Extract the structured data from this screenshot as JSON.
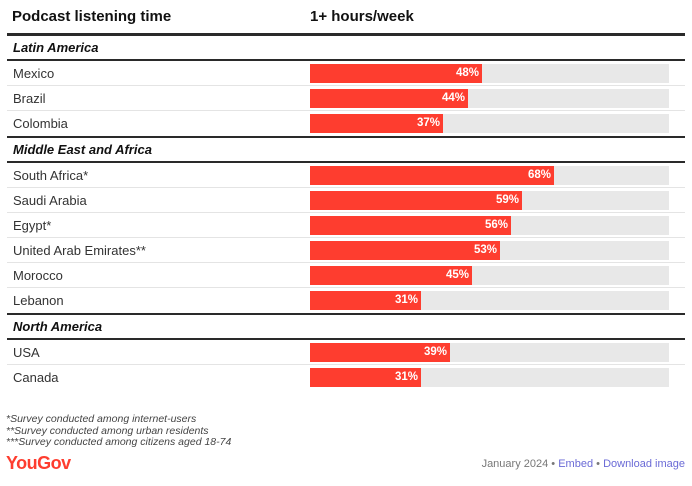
{
  "header": {
    "left_title": "Podcast listening time",
    "right_title": "1+ hours/week"
  },
  "chart_data": {
    "type": "bar",
    "orientation": "horizontal",
    "series": [
      {
        "values": [
          48,
          44,
          37,
          68,
          59,
          56,
          53,
          45,
          31,
          39,
          31
        ]
      }
    ],
    "categories": [
      "Mexico",
      "Brazil",
      "Colombia",
      "South Africa*",
      "Saudi Arabia",
      "Egypt*",
      "United Arab Emirates**",
      "Morocco",
      "Lebanon",
      "USA",
      "Canada"
    ],
    "xlim": [
      0,
      100
    ],
    "bar_color": "#fe3d2f",
    "track_color": "#e8e8e8",
    "groups": [
      {
        "label": "Latin America",
        "rows": [
          {
            "label": "Mexico",
            "value": 48,
            "display": "48%"
          },
          {
            "label": "Brazil",
            "value": 44,
            "display": "44%"
          },
          {
            "label": "Colombia",
            "value": 37,
            "display": "37%"
          }
        ]
      },
      {
        "label": "Middle East and Africa",
        "rows": [
          {
            "label": "South Africa*",
            "value": 68,
            "display": "68%"
          },
          {
            "label": "Saudi Arabia",
            "value": 59,
            "display": "59%"
          },
          {
            "label": "Egypt*",
            "value": 56,
            "display": "56%"
          },
          {
            "label": "United Arab Emirates**",
            "value": 53,
            "display": "53%"
          },
          {
            "label": "Morocco",
            "value": 45,
            "display": "45%"
          },
          {
            "label": "Lebanon",
            "value": 31,
            "display": "31%"
          }
        ]
      },
      {
        "label": "North America",
        "rows": [
          {
            "label": "USA",
            "value": 39,
            "display": "39%"
          },
          {
            "label": "Canada",
            "value": 31,
            "display": "31%"
          }
        ]
      }
    ]
  },
  "notes": [
    "*Survey conducted among internet-users",
    "**Survey conducted among urban residents",
    "***Survey conducted among citizens aged 18-74"
  ],
  "footer": {
    "logo": "YouGov",
    "date": "January 2024",
    "separator": "•",
    "embed_label": "Embed",
    "download_label": "Download image"
  }
}
